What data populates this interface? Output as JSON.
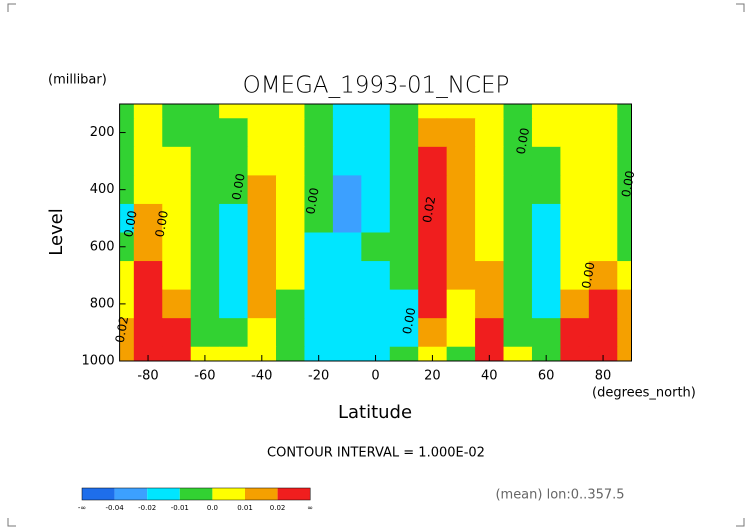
{
  "chart_data": {
    "type": "contour",
    "title": "OMEGA_1993-01_NCEP",
    "y_unit": "(millibar)",
    "x_unit": "(degrees_north)",
    "x_label": "Latitude",
    "y_label": "Level",
    "subtitle": "CONTOUR INTERVAL = 1.000E-02",
    "note": "(mean) lon:0..357.5",
    "x": [
      -90,
      -80,
      -70,
      -60,
      -50,
      -40,
      -30,
      -20,
      -10,
      0,
      10,
      20,
      30,
      40,
      50,
      60,
      70,
      80,
      90
    ],
    "y": [
      100,
      200,
      300,
      400,
      500,
      600,
      700,
      800,
      900,
      1000
    ],
    "z": [
      [
        -0.005,
        0.005,
        -0.005,
        -0.005,
        0.005,
        0.005,
        0.005,
        -0.005,
        -0.015,
        -0.015,
        -0.005,
        0.005,
        0.005,
        0.005,
        -0.005,
        0.005,
        0.005,
        0.005,
        -0.005
      ],
      [
        -0.005,
        0.005,
        -0.005,
        -0.005,
        -0.005,
        0.005,
        0.005,
        -0.005,
        -0.015,
        -0.015,
        -0.005,
        0.015,
        0.015,
        0.005,
        -0.005,
        0.005,
        0.005,
        0.005,
        -0.005
      ],
      [
        -0.005,
        0.005,
        0.005,
        -0.005,
        -0.005,
        0.005,
        0.005,
        -0.005,
        -0.015,
        -0.015,
        -0.005,
        0.025,
        0.015,
        0.005,
        -0.005,
        -0.005,
        0.005,
        0.005,
        -0.005
      ],
      [
        -0.005,
        0.005,
        0.005,
        -0.005,
        -0.005,
        0.015,
        0.005,
        -0.005,
        -0.03,
        -0.015,
        -0.005,
        0.025,
        0.015,
        0.005,
        -0.005,
        -0.005,
        0.005,
        0.005,
        -0.005
      ],
      [
        -0.015,
        0.015,
        0.005,
        -0.005,
        -0.015,
        0.015,
        0.005,
        -0.005,
        -0.03,
        -0.015,
        -0.005,
        0.025,
        0.015,
        0.005,
        -0.005,
        -0.015,
        0.005,
        0.005,
        -0.005
      ],
      [
        -0.005,
        0.015,
        0.005,
        -0.005,
        -0.015,
        0.015,
        0.005,
        -0.015,
        -0.015,
        -0.005,
        -0.005,
        0.025,
        0.015,
        0.005,
        -0.005,
        -0.015,
        0.005,
        0.005,
        -0.005
      ],
      [
        0.005,
        0.025,
        0.005,
        -0.005,
        -0.015,
        0.015,
        0.005,
        -0.015,
        -0.015,
        -0.015,
        -0.005,
        0.025,
        0.015,
        0.015,
        -0.005,
        -0.015,
        0.005,
        0.015,
        0.005
      ],
      [
        0.005,
        0.025,
        0.015,
        -0.005,
        -0.015,
        0.015,
        -0.005,
        -0.015,
        -0.015,
        -0.015,
        -0.015,
        0.025,
        0.005,
        0.015,
        -0.005,
        -0.015,
        0.015,
        0.025,
        0.015
      ],
      [
        0.015,
        0.025,
        0.025,
        -0.005,
        -0.005,
        0.005,
        -0.005,
        -0.015,
        -0.015,
        -0.015,
        -0.015,
        0.015,
        0.005,
        0.025,
        -0.005,
        -0.005,
        0.025,
        0.025,
        0.015
      ],
      [
        0.015,
        0.025,
        0.025,
        0.005,
        0.005,
        0.005,
        -0.005,
        -0.015,
        -0.015,
        -0.015,
        -0.005,
        0.005,
        -0.005,
        0.025,
        0.005,
        -0.005,
        0.025,
        0.025,
        0.015
      ]
    ],
    "levels": [
      -0.04,
      -0.02,
      -0.01,
      0,
      0.01,
      0.02
    ],
    "colors": [
      "#1e6eeb",
      "#3ca0ff",
      "#00e6ff",
      "#32d232",
      "#ffff00",
      "#f5a000",
      "#f01e1e"
    ],
    "colorbar_labels": [
      "-∞",
      "-0.04",
      "-0.02",
      "-0.01",
      "0.0",
      "0.01",
      "0.02",
      "∞"
    ],
    "contour_labels": [
      {
        "text": "0.02",
        "x": -89,
        "y": 890
      },
      {
        "text": "0.00",
        "x": -86,
        "y": 520
      },
      {
        "text": "0.00",
        "x": -75,
        "y": 520
      },
      {
        "text": "0.00",
        "x": -48,
        "y": 390
      },
      {
        "text": "0.00",
        "x": -22,
        "y": 440
      },
      {
        "text": "0.02",
        "x": 19,
        "y": 470
      },
      {
        "text": "0.00",
        "x": 12,
        "y": 860
      },
      {
        "text": "0.00",
        "x": 52,
        "y": 230
      },
      {
        "text": "0.00",
        "x": 75,
        "y": 700
      },
      {
        "text": "0.00",
        "x": 89,
        "y": 380
      }
    ],
    "xlim": [
      -90,
      90
    ],
    "ylim": [
      1000,
      100
    ],
    "xticks": [
      -80,
      -60,
      -40,
      -20,
      0,
      20,
      40,
      60,
      80
    ],
    "yticks": [
      1000,
      800,
      600,
      400,
      200
    ]
  }
}
